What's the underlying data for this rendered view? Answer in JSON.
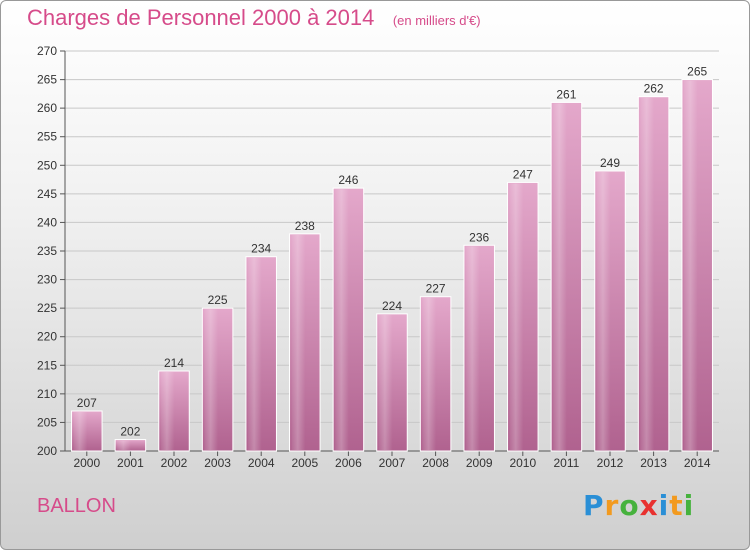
{
  "chart_data": {
    "type": "bar",
    "title": "Charges de Personnel 2000 à 2014",
    "subtitle": "(en milliers d'€)",
    "categories": [
      "2000",
      "2001",
      "2002",
      "2003",
      "2004",
      "2005",
      "2006",
      "2007",
      "2008",
      "2009",
      "2010",
      "2011",
      "2012",
      "2013",
      "2014"
    ],
    "values": [
      207,
      202,
      214,
      225,
      234,
      238,
      246,
      224,
      227,
      236,
      247,
      261,
      249,
      262,
      265
    ],
    "ylim": [
      200,
      270
    ],
    "yticks": [
      200,
      205,
      210,
      215,
      220,
      225,
      230,
      235,
      240,
      245,
      250,
      255,
      260,
      265,
      270
    ],
    "grid": true,
    "bar_color": "#c2669a",
    "title_color": "#d64b8a"
  },
  "commune": "BALLON",
  "logo": {
    "letters": [
      "P",
      "r",
      "o",
      "x",
      "i",
      "t",
      "i"
    ],
    "colors": [
      "#2a8fd6",
      "#f29a1f",
      "#46b23d",
      "#e8312f",
      "#2a8fd6",
      "#f29a1f",
      "#46b23d"
    ]
  }
}
